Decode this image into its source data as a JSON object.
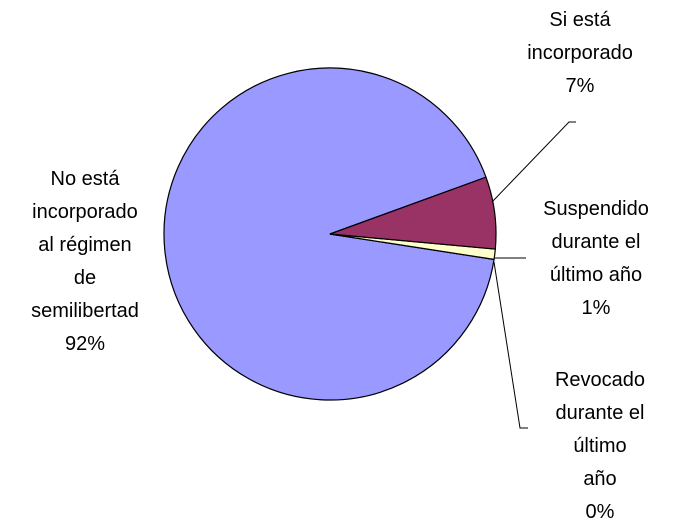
{
  "chart_data": {
    "type": "pie",
    "categories": [
      "Si está\nincorporado",
      "Suspendido\ndurante el\núltimo año",
      "Revocado\ndurante el\núltimo año",
      "No está\nincorporado\nal régimen\nde\nsemilibertad"
    ],
    "values": [
      7,
      1,
      0,
      92
    ],
    "value_labels": [
      "7%",
      "1%",
      "0%",
      "92%"
    ],
    "colors": [
      "#993366",
      "#FFFFCC",
      "#CCFFFF",
      "#9999FF"
    ]
  }
}
